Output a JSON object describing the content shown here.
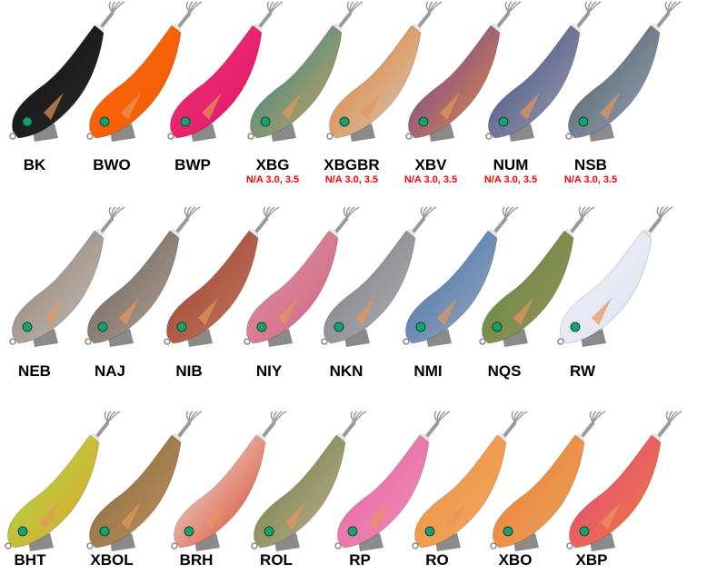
{
  "rows": [
    {
      "items": [
        {
          "code": "BK",
          "note": "",
          "colors": [
            "#111111",
            "#2a2a2a"
          ]
        },
        {
          "code": "BWO",
          "note": "",
          "colors": [
            "#ff6a10",
            "#f05a00"
          ]
        },
        {
          "code": "BWP",
          "note": "",
          "colors": [
            "#f0307a",
            "#e01866"
          ]
        },
        {
          "code": "XBG",
          "note": "N/A 3.0, 3.5",
          "colors": [
            "#1a8a8a",
            "#d8a060"
          ]
        },
        {
          "code": "XBGBR",
          "note": "N/A 3.0, 3.5",
          "colors": [
            "#e87a20",
            "#d0c8c0"
          ]
        },
        {
          "code": "XBV",
          "note": "N/A 3.0, 3.5",
          "colors": [
            "#6a3aa0",
            "#e09040"
          ]
        },
        {
          "code": "NUM",
          "note": "N/A 3.0, 3.5",
          "colors": [
            "#3a4a80",
            "#a0a0b0"
          ]
        },
        {
          "code": "NSB",
          "note": "N/A 3.0, 3.5",
          "colors": [
            "#4a5a6a",
            "#9aa4b0"
          ]
        }
      ]
    },
    {
      "items": [
        {
          "code": "NEB",
          "note": "",
          "colors": [
            "#8a7a70",
            "#c8c0b8"
          ]
        },
        {
          "code": "NAJ",
          "note": "",
          "colors": [
            "#6a5a50",
            "#b0a498"
          ]
        },
        {
          "code": "NIB",
          "note": "",
          "colors": [
            "#a04030",
            "#c07860"
          ]
        },
        {
          "code": "NIY",
          "note": "",
          "colors": [
            "#e890a8",
            "#c86880"
          ]
        },
        {
          "code": "NKN",
          "note": "",
          "colors": [
            "#7a7a80",
            "#b0b0b4"
          ]
        },
        {
          "code": "NMI",
          "note": "",
          "colors": [
            "#3a70b0",
            "#a0a8b8"
          ]
        },
        {
          "code": "NQS",
          "note": "",
          "colors": [
            "#5a8a3a",
            "#a09060"
          ]
        },
        {
          "code": "RW",
          "note": "",
          "colors": [
            "#f0f2fa",
            "#dde2f0"
          ]
        }
      ]
    },
    {
      "items": [
        {
          "code": "BHT",
          "note": "",
          "colors": [
            "#a0e040",
            "#e8a030"
          ]
        },
        {
          "code": "XBOL",
          "note": "",
          "colors": [
            "#7a6a3a",
            "#c89060"
          ]
        },
        {
          "code": "BRH",
          "note": "",
          "colors": [
            "#f0f0f0",
            "#d84020"
          ]
        },
        {
          "code": "ROL",
          "note": "",
          "colors": [
            "#6a7a40",
            "#c0b090"
          ]
        },
        {
          "code": "RP",
          "note": "",
          "colors": [
            "#f060a0",
            "#e890b8"
          ]
        },
        {
          "code": "RO",
          "note": "",
          "colors": [
            "#f09040",
            "#f0a860"
          ]
        },
        {
          "code": "XBO",
          "note": "",
          "colors": [
            "#f08030",
            "#e8a060"
          ]
        },
        {
          "code": "XBP",
          "note": "",
          "colors": [
            "#e04080",
            "#f08040"
          ]
        }
      ]
    }
  ],
  "eye_color": "#1aa070",
  "sinker_color": "#8a8a8a",
  "hook_color": "#9a9a9a"
}
